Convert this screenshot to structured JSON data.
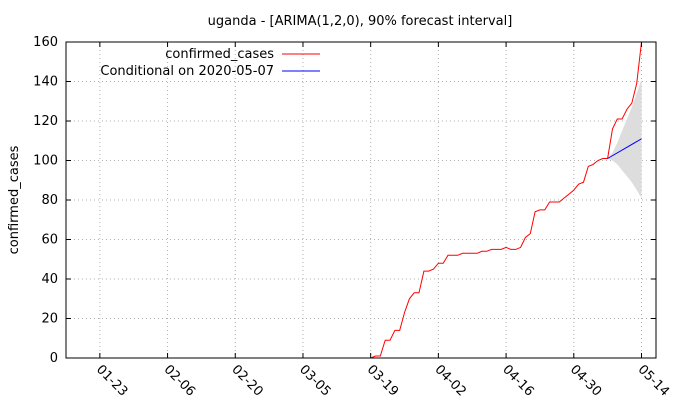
{
  "chart_data": {
    "type": "line",
    "title": "uganda -  [ARIMA(1,2,0), 90% forecast interval]",
    "xlabel": "",
    "ylabel": "confirmed_cases",
    "x_start": "2020-01-16",
    "x_end": "2020-05-17",
    "ylim": [
      0,
      160
    ],
    "yticks": [
      0,
      20,
      40,
      60,
      80,
      100,
      120,
      140,
      160
    ],
    "xticks": [
      {
        "date": "2020-01-23",
        "label": "01-23"
      },
      {
        "date": "2020-02-06",
        "label": "02-06"
      },
      {
        "date": "2020-02-20",
        "label": "02-20"
      },
      {
        "date": "2020-03-05",
        "label": "03-05"
      },
      {
        "date": "2020-03-19",
        "label": "03-19"
      },
      {
        "date": "2020-04-02",
        "label": "04-02"
      },
      {
        "date": "2020-04-16",
        "label": "04-16"
      },
      {
        "date": "2020-04-30",
        "label": "04-30"
      },
      {
        "date": "2020-05-14",
        "label": "05-14"
      }
    ],
    "grid": true,
    "legend_position": "top-left",
    "series": [
      {
        "name": "confirmed_cases",
        "color": "#ff0000",
        "x": [
          "2020-01-16",
          "2020-03-19",
          "2020-03-20",
          "2020-03-21",
          "2020-03-22",
          "2020-03-23",
          "2020-03-24",
          "2020-03-25",
          "2020-03-26",
          "2020-03-27",
          "2020-03-28",
          "2020-03-29",
          "2020-03-30",
          "2020-03-31",
          "2020-04-01",
          "2020-04-02",
          "2020-04-03",
          "2020-04-04",
          "2020-04-05",
          "2020-04-06",
          "2020-04-07",
          "2020-04-08",
          "2020-04-09",
          "2020-04-10",
          "2020-04-11",
          "2020-04-12",
          "2020-04-13",
          "2020-04-14",
          "2020-04-15",
          "2020-04-16",
          "2020-04-17",
          "2020-04-18",
          "2020-04-19",
          "2020-04-20",
          "2020-04-21",
          "2020-04-22",
          "2020-04-23",
          "2020-04-24",
          "2020-04-25",
          "2020-04-26",
          "2020-04-27",
          "2020-04-28",
          "2020-04-29",
          "2020-04-30",
          "2020-05-01",
          "2020-05-02",
          "2020-05-03",
          "2020-05-04",
          "2020-05-05",
          "2020-05-06",
          "2020-05-07",
          "2020-05-08",
          "2020-05-09",
          "2020-05-10",
          "2020-05-11",
          "2020-05-12",
          "2020-05-13",
          "2020-05-14"
        ],
        "y": [
          0,
          0,
          1,
          1,
          9,
          9,
          14,
          14,
          23,
          30,
          33,
          33,
          44,
          44,
          45,
          48,
          48,
          52,
          52,
          52,
          53,
          53,
          53,
          53,
          54,
          54,
          55,
          55,
          55,
          56,
          55,
          55,
          56,
          61,
          63,
          74,
          75,
          75,
          79,
          79,
          79,
          81,
          83,
          85,
          88,
          89,
          97,
          98,
          100,
          101,
          101,
          116,
          121,
          121,
          126,
          129,
          139,
          160
        ]
      },
      {
        "name": "Conditional on 2020-05-07",
        "color": "#0000ff",
        "x": [
          "2020-05-07",
          "2020-05-14"
        ],
        "y": [
          101,
          111
        ]
      }
    ],
    "forecast_interval": {
      "level": "90%",
      "color": "#dddddd",
      "x": [
        "2020-05-07",
        "2020-05-08",
        "2020-05-09",
        "2020-05-10",
        "2020-05-11",
        "2020-05-12",
        "2020-05-13",
        "2020-05-14"
      ],
      "lower": [
        101,
        100,
        98,
        95,
        92,
        89,
        85,
        81
      ],
      "upper": [
        101,
        104,
        109,
        115,
        121,
        127,
        134,
        141
      ]
    }
  }
}
